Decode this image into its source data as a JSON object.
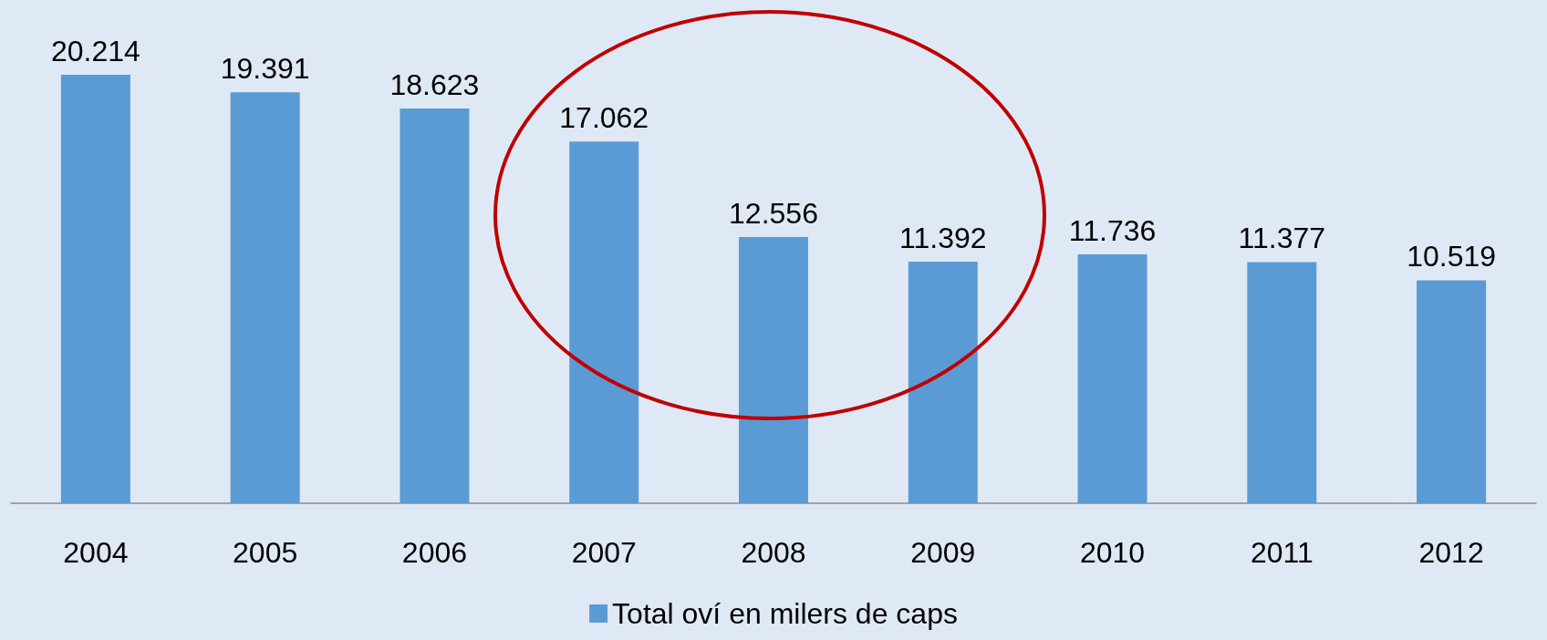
{
  "chart_data": {
    "type": "bar",
    "categories": [
      "2004",
      "2005",
      "2006",
      "2007",
      "2008",
      "2009",
      "2010",
      "2011",
      "2012"
    ],
    "series": [
      {
        "name": "Total oví en milers de caps",
        "color": "#5b9bd5",
        "values": [
          20.214,
          19.391,
          18.623,
          17.062,
          12.556,
          11.392,
          11.736,
          11.377,
          10.519
        ]
      }
    ],
    "data_labels": true,
    "legend": "bottom",
    "grid": false
  }
}
